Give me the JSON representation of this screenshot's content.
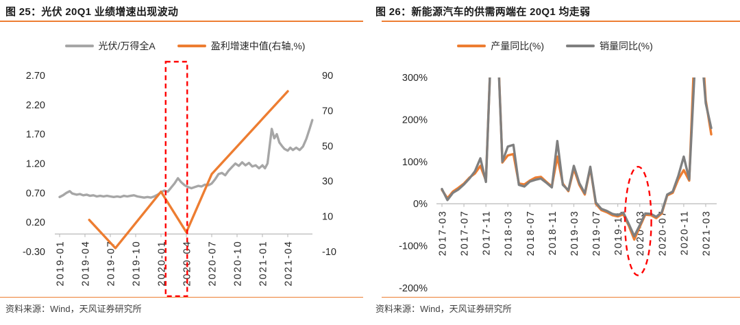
{
  "page": {
    "background": "#ffffff"
  },
  "chart_data": [
    {
      "type": "line",
      "title": "图 25：光伏 20Q1 业绩增速出现波动",
      "source": "资料来源：Wind，天风证券研究所",
      "legend_position": "top",
      "grid": false,
      "x_axis": {
        "tick_labels": [
          "2019-01",
          "2019-04",
          "2019-07",
          "2019-10",
          "2020-01",
          "2020-04",
          "2020-07",
          "2020-10",
          "2021-01",
          "2021-04"
        ],
        "tick_months": [
          0,
          3,
          6,
          9,
          12,
          15,
          18,
          21,
          24,
          27
        ]
      },
      "y_axis_left": {
        "labels": [
          "2.70",
          "2.20",
          "1.70",
          "1.20",
          "0.70",
          "0.20",
          "-0.30"
        ],
        "values": [
          2.7,
          2.2,
          1.7,
          1.2,
          0.7,
          0.2,
          -0.3
        ],
        "min": -0.3,
        "max": 2.7
      },
      "y_axis_right": {
        "labels": [
          "90",
          "70",
          "50",
          "30",
          "10",
          "-10"
        ],
        "values": [
          90,
          70,
          50,
          30,
          10,
          -10
        ],
        "min": -10,
        "max": 90
      },
      "series": [
        {
          "name": "光伏/万得全A",
          "axis": "left",
          "color": "#A6A6A6",
          "points": [
            [
              0,
              0.63
            ],
            [
              0.4,
              0.66
            ],
            [
              0.8,
              0.7
            ],
            [
              1.2,
              0.73
            ],
            [
              1.5,
              0.69
            ],
            [
              2,
              0.67
            ],
            [
              2.4,
              0.68
            ],
            [
              2.8,
              0.66
            ],
            [
              3.2,
              0.67
            ],
            [
              3.6,
              0.65
            ],
            [
              4,
              0.66
            ],
            [
              4.4,
              0.64
            ],
            [
              4.8,
              0.65
            ],
            [
              5.2,
              0.64
            ],
            [
              5.6,
              0.65
            ],
            [
              6,
              0.64
            ],
            [
              6.4,
              0.63
            ],
            [
              6.8,
              0.64
            ],
            [
              7.2,
              0.63
            ],
            [
              7.6,
              0.65
            ],
            [
              8,
              0.64
            ],
            [
              8.4,
              0.65
            ],
            [
              8.8,
              0.66
            ],
            [
              9.2,
              0.64
            ],
            [
              9.6,
              0.63
            ],
            [
              10,
              0.62
            ],
            [
              10.4,
              0.63
            ],
            [
              10.8,
              0.62
            ],
            [
              11.2,
              0.64
            ],
            [
              11.6,
              0.67
            ],
            [
              12,
              0.71
            ],
            [
              12.4,
              0.74
            ],
            [
              12.8,
              0.72
            ],
            [
              13.2,
              0.79
            ],
            [
              13.6,
              0.86
            ],
            [
              14,
              0.95
            ],
            [
              14.4,
              0.88
            ],
            [
              14.8,
              0.83
            ],
            [
              15.2,
              0.8
            ],
            [
              15.6,
              0.78
            ],
            [
              16,
              0.8
            ],
            [
              16.4,
              0.82
            ],
            [
              16.8,
              0.81
            ],
            [
              17.2,
              0.84
            ],
            [
              17.6,
              0.83
            ],
            [
              18,
              0.86
            ],
            [
              18.4,
              0.93
            ],
            [
              18.8,
              1.02
            ],
            [
              19.2,
              1.04
            ],
            [
              19.6,
              1.0
            ],
            [
              20,
              1.08
            ],
            [
              20.4,
              1.14
            ],
            [
              20.8,
              1.2
            ],
            [
              21.2,
              1.16
            ],
            [
              21.6,
              1.22
            ],
            [
              22,
              1.17
            ],
            [
              22.4,
              1.21
            ],
            [
              22.8,
              1.15
            ],
            [
              23.2,
              1.17
            ],
            [
              23.6,
              1.12
            ],
            [
              24,
              1.17
            ],
            [
              24.3,
              1.12
            ],
            [
              24.6,
              1.2
            ],
            [
              24.9,
              1.55
            ],
            [
              25.1,
              1.79
            ],
            [
              25.4,
              1.63
            ],
            [
              25.7,
              1.7
            ],
            [
              26,
              1.56
            ],
            [
              26.3,
              1.5
            ],
            [
              26.6,
              1.45
            ],
            [
              27,
              1.42
            ],
            [
              27.3,
              1.47
            ],
            [
              27.6,
              1.43
            ],
            [
              28,
              1.47
            ],
            [
              28.4,
              1.43
            ],
            [
              28.8,
              1.49
            ],
            [
              29.2,
              1.62
            ],
            [
              29.6,
              1.8
            ],
            [
              29.9,
              1.94
            ]
          ]
        },
        {
          "name": "盈利增速中值(右轴,%)",
          "axis": "right",
          "color": "#ED7D31",
          "points": [
            [
              3.5,
              8
            ],
            [
              6.6,
              -8
            ],
            [
              12,
              24
            ],
            [
              15,
              1
            ],
            [
              18,
              34
            ],
            [
              27,
              81
            ]
          ]
        }
      ],
      "annotations": [
        {
          "shape": "rect",
          "style": "dashed",
          "color": "#FF0000",
          "x_month_from": 12.55,
          "x_month_to": 15.1,
          "full_height": true
        }
      ]
    },
    {
      "type": "line",
      "title": "图 26：新能源汽车的供需两端在 20Q1 均走弱",
      "source": "资料来源：Wind，天风证券研究所",
      "legend_position": "top",
      "grid": false,
      "x_axis": {
        "tick_labels": [
          "2017-03",
          "2017-07",
          "2017-11",
          "2018-03",
          "2018-07",
          "2018-11",
          "2019-03",
          "2019-07",
          "2019-11",
          "2020-03",
          "2020-07",
          "2020-11",
          "2021-03"
        ],
        "tick_months": [
          0,
          4,
          8,
          12,
          16,
          20,
          24,
          28,
          32,
          36,
          40,
          44,
          48
        ]
      },
      "y_axis_left": {
        "labels": [
          "300%",
          "200%",
          "100%",
          "0%",
          "-100%",
          "-200%"
        ],
        "values": [
          300,
          200,
          100,
          0,
          -100,
          -200
        ],
        "min": -200,
        "max": 300
      },
      "series": [
        {
          "name": "产量同比(%)",
          "axis": "left",
          "color": "#ED7D31",
          "start_month_label": "2017-03",
          "values": [
            33,
            13,
            29,
            38,
            48,
            62,
            72,
            90,
            55,
            400,
            440,
            98,
            115,
            118,
            48,
            46,
            55,
            62,
            64,
            52,
            41,
            112,
            48,
            30,
            83,
            45,
            22,
            85,
            0,
            -15,
            -20,
            -27,
            -30,
            -25,
            -52,
            -85,
            -55,
            -26,
            -27,
            -34,
            -23,
            20,
            26,
            58,
            80,
            55,
            380,
            450,
            246,
            165
          ]
        },
        {
          "name": "销量同比(%)",
          "axis": "left",
          "color": "#7F7F7F",
          "start_month_label": "2017-03",
          "values": [
            35,
            9,
            26,
            34,
            46,
            60,
            77,
            108,
            52,
            400,
            430,
            100,
            136,
            140,
            45,
            41,
            53,
            57,
            60,
            50,
            39,
            149,
            45,
            32,
            90,
            49,
            25,
            88,
            3,
            -12,
            -17,
            -24,
            -27,
            -21,
            -48,
            -77,
            -51,
            -23,
            -24,
            -31,
            -20,
            22,
            29,
            66,
            112,
            58,
            320,
            400,
            239,
            180
          ]
        }
      ],
      "annotations": [
        {
          "shape": "ellipse",
          "style": "dashed",
          "color": "#FF0000",
          "center_month": 35.7,
          "center_value": -41,
          "radius_months": 2.4,
          "radius_value": 129
        }
      ]
    }
  ]
}
